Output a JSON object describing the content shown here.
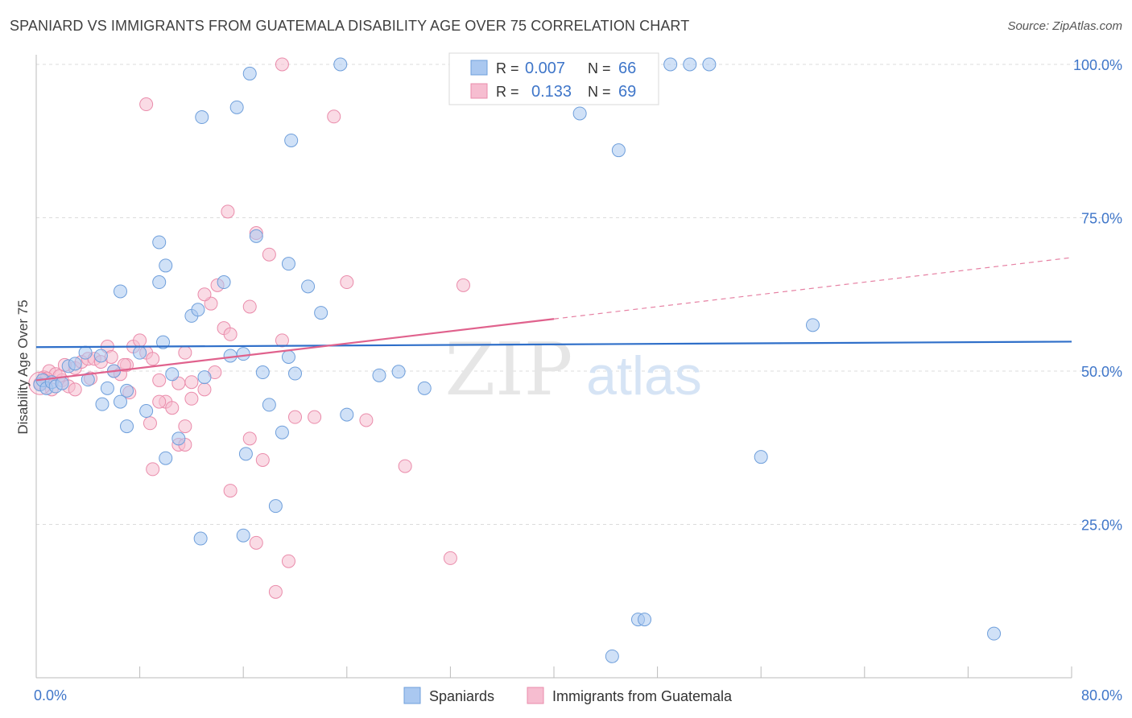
{
  "title": "SPANIARD VS IMMIGRANTS FROM GUATEMALA DISABILITY AGE OVER 75 CORRELATION CHART",
  "source": "Source: ZipAtlas.com",
  "watermark": {
    "zip": "ZIP",
    "atlas": "atlas"
  },
  "colors": {
    "blue_fill": "#aac8f0",
    "blue_stroke": "#6f9fdb",
    "blue_line": "#2f6fc9",
    "pink_fill": "#f6bdd0",
    "pink_stroke": "#ea8cab",
    "pink_line": "#e0628d",
    "value_text": "#3f76c9",
    "grid": "#dcdcdc"
  },
  "legend": {
    "row1": {
      "r_label": "R =",
      "r_value": "0.007",
      "n_label": "N =",
      "n_value": "66"
    },
    "row2": {
      "r_label": "R =",
      "r_value": "0.133",
      "n_label": "N =",
      "n_value": "69"
    }
  },
  "chart_data": {
    "type": "scatter",
    "title": "SPANIARD VS IMMIGRANTS FROM GUATEMALA DISABILITY AGE OVER 75 CORRELATION CHART",
    "xlabel": "",
    "ylabel": "Disability Age Over 75",
    "xlim": [
      0,
      80
    ],
    "ylim": [
      0,
      100
    ],
    "x_tick_labels": [
      "0.0%",
      "80.0%"
    ],
    "y_tick_labels": [
      "25.0%",
      "50.0%",
      "75.0%",
      "100.0%"
    ],
    "y_ticks": [
      25,
      50,
      75,
      100
    ],
    "x_ticks": [
      0,
      8,
      16,
      24,
      32,
      40,
      48,
      56,
      64,
      72,
      80
    ],
    "legend_position": "top-center",
    "bottom_legend": [
      "Spaniards",
      "Immigrants from Guatemala"
    ],
    "series": [
      {
        "name": "Spaniards",
        "r": 0.007,
        "n": 66,
        "trend": {
          "x0": 0,
          "y0": 53.9,
          "x1": 80,
          "y1": 54.8
        },
        "points": [
          [
            0.3,
            47.8
          ],
          [
            0.5,
            48.5
          ],
          [
            0.8,
            47.2
          ],
          [
            1.2,
            48.2
          ],
          [
            1.5,
            47.5
          ],
          [
            2.0,
            48.0
          ],
          [
            2.5,
            50.8
          ],
          [
            3.0,
            51.2
          ],
          [
            3.8,
            53.0
          ],
          [
            4.0,
            48.6
          ],
          [
            5.0,
            52.5
          ],
          [
            5.5,
            47.2
          ],
          [
            6.0,
            50.0
          ],
          [
            6.5,
            45.0
          ],
          [
            7.0,
            46.8
          ],
          [
            5.1,
            44.6
          ],
          [
            8.0,
            53.0
          ],
          [
            8.5,
            43.5
          ],
          [
            9.8,
            54.7
          ],
          [
            10.5,
            49.5
          ],
          [
            11.0,
            39.0
          ],
          [
            12.0,
            59.0
          ],
          [
            12.5,
            60.0
          ],
          [
            13.0,
            49.0
          ],
          [
            14.5,
            64.5
          ],
          [
            15.0,
            52.5
          ],
          [
            16.0,
            52.8
          ],
          [
            16.2,
            36.5
          ],
          [
            17.5,
            49.8
          ],
          [
            18.0,
            44.5
          ],
          [
            19.0,
            40.0
          ],
          [
            19.5,
            52.3
          ],
          [
            20.0,
            49.6
          ],
          [
            21.0,
            63.8
          ],
          [
            22.0,
            59.5
          ],
          [
            26.5,
            49.3
          ],
          [
            28.0,
            49.9
          ],
          [
            24.0,
            42.9
          ],
          [
            10.0,
            35.8
          ],
          [
            7.0,
            41.0
          ],
          [
            6.5,
            63.0
          ],
          [
            9.5,
            64.5
          ],
          [
            10.0,
            67.2
          ],
          [
            9.5,
            71.0
          ],
          [
            17.0,
            72.0
          ],
          [
            19.5,
            67.5
          ],
          [
            12.7,
            22.7
          ],
          [
            16.0,
            23.2
          ],
          [
            18.5,
            28.0
          ],
          [
            19.7,
            87.6
          ],
          [
            12.8,
            91.4
          ],
          [
            15.5,
            93.0
          ],
          [
            16.5,
            98.5
          ],
          [
            23.5,
            100.0
          ],
          [
            49.0,
            100.0
          ],
          [
            50.5,
            100.0
          ],
          [
            52.0,
            100.0
          ],
          [
            42.0,
            92.0
          ],
          [
            45.0,
            86.0
          ],
          [
            30.0,
            47.2
          ],
          [
            60.0,
            57.5
          ],
          [
            56.0,
            36.0
          ],
          [
            46.5,
            9.5
          ],
          [
            47.0,
            9.5
          ],
          [
            44.5,
            3.5
          ],
          [
            74.0,
            7.2
          ]
        ]
      },
      {
        "name": "Immigrants from Guatemala",
        "r": 0.133,
        "n": 69,
        "trend": {
          "x0": 0,
          "y0": 48.5,
          "x1": 40,
          "y1": 58.5,
          "dash_to_x": 80,
          "dash_to_y": 68.5
        },
        "points": [
          [
            0.3,
            48.0
          ],
          [
            0.6,
            49.0
          ],
          [
            1.0,
            50.0
          ],
          [
            1.5,
            49.5
          ],
          [
            2.0,
            48.5
          ],
          [
            2.5,
            47.5
          ],
          [
            3.0,
            50.5
          ],
          [
            3.5,
            51.5
          ],
          [
            4.0,
            52.0
          ],
          [
            4.5,
            52.0
          ],
          [
            5.0,
            51.5
          ],
          [
            5.5,
            54.0
          ],
          [
            6.0,
            50.0
          ],
          [
            6.5,
            49.5
          ],
          [
            7.0,
            51.0
          ],
          [
            7.5,
            54.0
          ],
          [
            8.0,
            55.0
          ],
          [
            8.5,
            53.0
          ],
          [
            9.0,
            52.0
          ],
          [
            9.5,
            48.5
          ],
          [
            10.0,
            45.0
          ],
          [
            11.0,
            48.0
          ],
          [
            11.5,
            53.0
          ],
          [
            12.0,
            45.5
          ],
          [
            13.0,
            47.0
          ],
          [
            13.5,
            61.0
          ],
          [
            14.0,
            64.0
          ],
          [
            14.5,
            57.0
          ],
          [
            15.0,
            56.0
          ],
          [
            16.5,
            60.5
          ],
          [
            17.0,
            72.5
          ],
          [
            18.0,
            69.0
          ],
          [
            19.0,
            55.0
          ],
          [
            20.0,
            42.5
          ],
          [
            21.5,
            42.5
          ],
          [
            24.0,
            64.5
          ],
          [
            25.5,
            42.0
          ],
          [
            28.5,
            34.5
          ],
          [
            33.0,
            64.0
          ],
          [
            32.0,
            19.5
          ],
          [
            11.0,
            38.0
          ],
          [
            11.5,
            38.0
          ],
          [
            9.0,
            34.0
          ],
          [
            15.0,
            30.5
          ],
          [
            17.5,
            35.5
          ],
          [
            16.5,
            39.0
          ],
          [
            18.5,
            14.0
          ],
          [
            19.5,
            19.0
          ],
          [
            17.0,
            22.0
          ],
          [
            11.5,
            41.0
          ],
          [
            9.5,
            45.0
          ],
          [
            10.5,
            44.0
          ],
          [
            13.0,
            62.5
          ],
          [
            14.8,
            76.0
          ],
          [
            19.0,
            100.0
          ],
          [
            23.0,
            91.5
          ],
          [
            8.5,
            93.5
          ],
          [
            3.0,
            47.0
          ],
          [
            4.2,
            48.8
          ],
          [
            5.8,
            52.3
          ],
          [
            6.8,
            51.0
          ],
          [
            7.2,
            46.5
          ],
          [
            8.8,
            41.5
          ],
          [
            13.8,
            49.8
          ],
          [
            12.0,
            48.2
          ],
          [
            1.8,
            49.2
          ],
          [
            2.2,
            51.0
          ],
          [
            0.8,
            48.8
          ],
          [
            1.2,
            47.0
          ]
        ]
      }
    ]
  }
}
